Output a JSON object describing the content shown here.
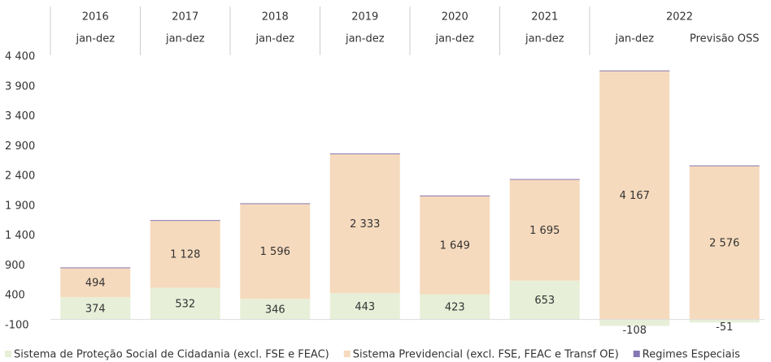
{
  "chart_data": {
    "type": "stacked-bar",
    "years": [
      "2016",
      "2017",
      "2018",
      "2019",
      "2020",
      "2021",
      "2022",
      null
    ],
    "categories": [
      "jan-dez",
      "jan-dez",
      "jan-dez",
      "jan-dez",
      "jan-dez",
      "jan-dez",
      "jan-dez",
      "Previsão OSS"
    ],
    "series": [
      {
        "name": "Sistema de Proteção Social de Cidadania (excl. FSE e FEAC)",
        "color": "#e7efd8",
        "values": [
          374,
          532,
          346,
          443,
          423,
          653,
          -108,
          -51
        ]
      },
      {
        "name": "Sistema Previdencial (excl. FSE, FEAC e Transf OE)",
        "color": "#f6dabd",
        "values": [
          494,
          1128,
          1596,
          2333,
          1649,
          1695,
          4167,
          2576
        ],
        "value_labels": [
          "494",
          "1 128",
          "1 596",
          "2 333",
          "1 649",
          "1 695",
          "4 167",
          "2 576"
        ]
      },
      {
        "name": "Regimes Especiais",
        "color": "#8678b4",
        "values": [
          5,
          5,
          5,
          5,
          5,
          5,
          5,
          5
        ]
      }
    ],
    "ylim": [
      -100,
      4400
    ],
    "yticks": [
      {
        "value": 4400,
        "label": "4 400"
      },
      {
        "value": 3900,
        "label": "3 900"
      },
      {
        "value": 3400,
        "label": "3 400"
      },
      {
        "value": 2900,
        "label": "2 900"
      },
      {
        "value": 2400,
        "label": "2 400"
      },
      {
        "value": 1900,
        "label": "1 900"
      },
      {
        "value": 1400,
        "label": "1 400"
      },
      900,
      400,
      -100
    ],
    "legend": "bottom"
  }
}
